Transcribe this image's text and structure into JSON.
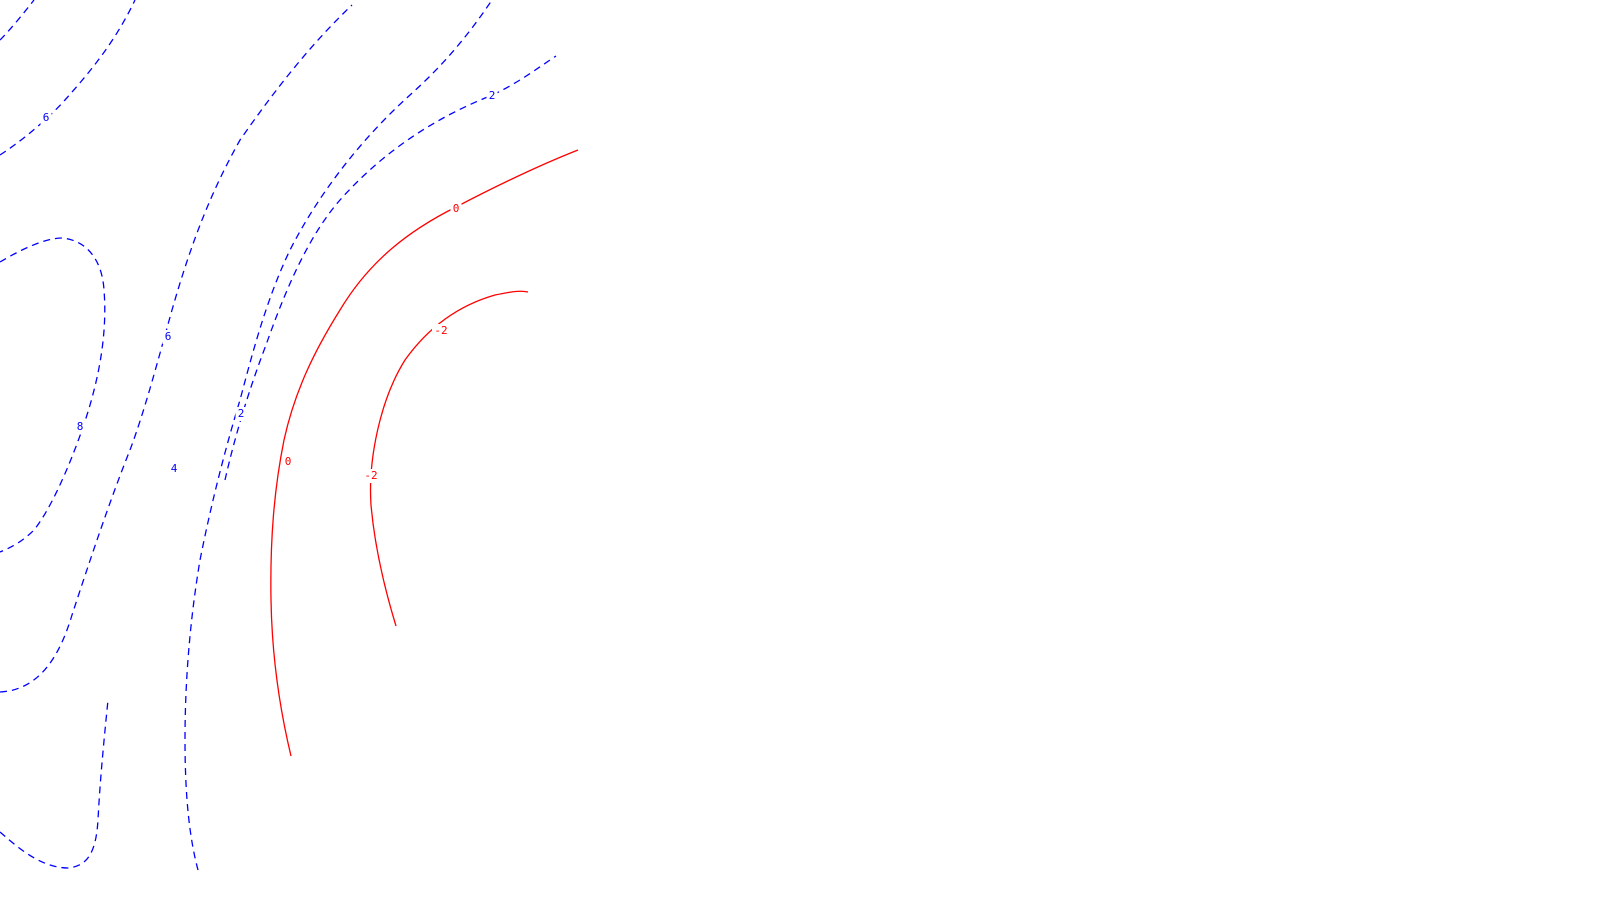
{
  "chart_data": {
    "type": "contour",
    "title": "",
    "xlabel": "",
    "ylabel": "",
    "grid": false,
    "legend": false,
    "colors": {
      "positive": "#0000ff",
      "nonpositive": "#ff0000",
      "background": "#ffffff"
    },
    "line_styles": {
      "positive": "dashed",
      "nonpositive": "solid"
    },
    "contour_levels": [
      {
        "level": 8,
        "label": "8",
        "style": "positive"
      },
      {
        "level": 6,
        "label": "6",
        "style": "positive"
      },
      {
        "level": 4,
        "label": "4",
        "style": "positive"
      },
      {
        "level": 2,
        "label": "2",
        "style": "positive"
      },
      {
        "level": 0,
        "label": "0",
        "style": "nonpositive"
      },
      {
        "level": -2,
        "label": "-2",
        "style": "nonpositive"
      }
    ]
  }
}
